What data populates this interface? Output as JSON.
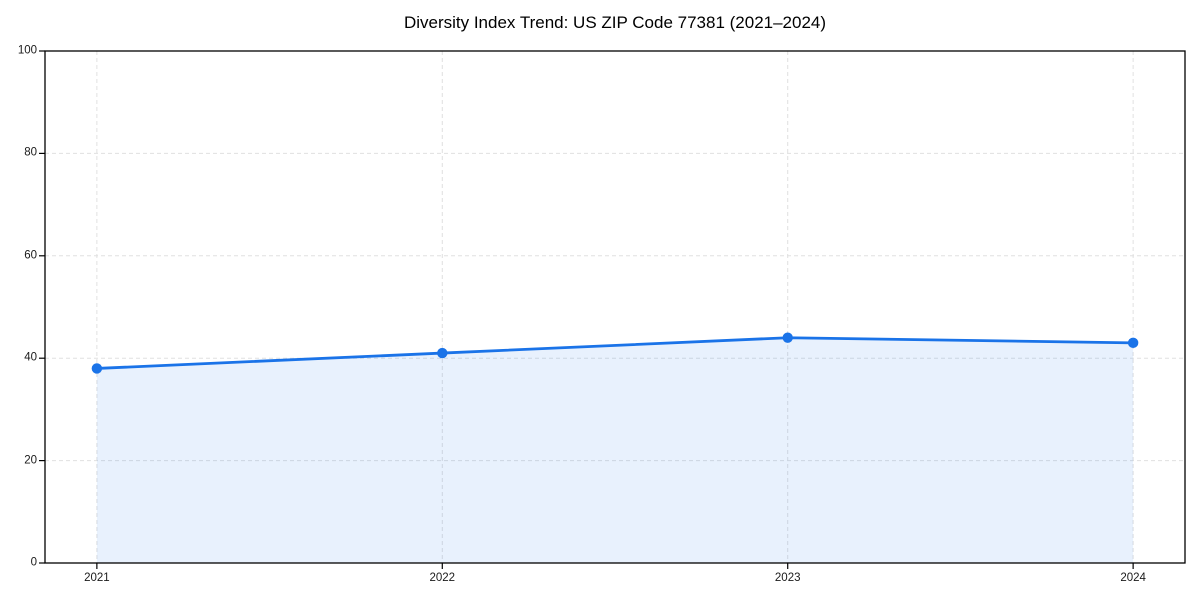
{
  "chart_data": {
    "type": "line",
    "x": [
      "2021",
      "2022",
      "2023",
      "2024"
    ],
    "series": [
      {
        "name": "Diversity Index",
        "values": [
          38,
          41,
          44,
          43
        ]
      }
    ],
    "title": "Diversity Index Trend: US ZIP Code 77381 (2021–2024)",
    "xlabel": "",
    "ylabel": "",
    "ylim": [
      0,
      100
    ],
    "yticks": [
      0,
      20,
      40,
      60,
      80,
      100
    ],
    "grid": "dashed",
    "legend": "none",
    "area_fill": true,
    "marker": "circle",
    "colors": {
      "line": "#1a73e8",
      "fill": "#1a73e8",
      "fill_opacity": 0.1,
      "grid": "#e0e0e0",
      "axis": "#000000",
      "tick_text": "#1a1a1a",
      "background": "#ffffff"
    }
  }
}
